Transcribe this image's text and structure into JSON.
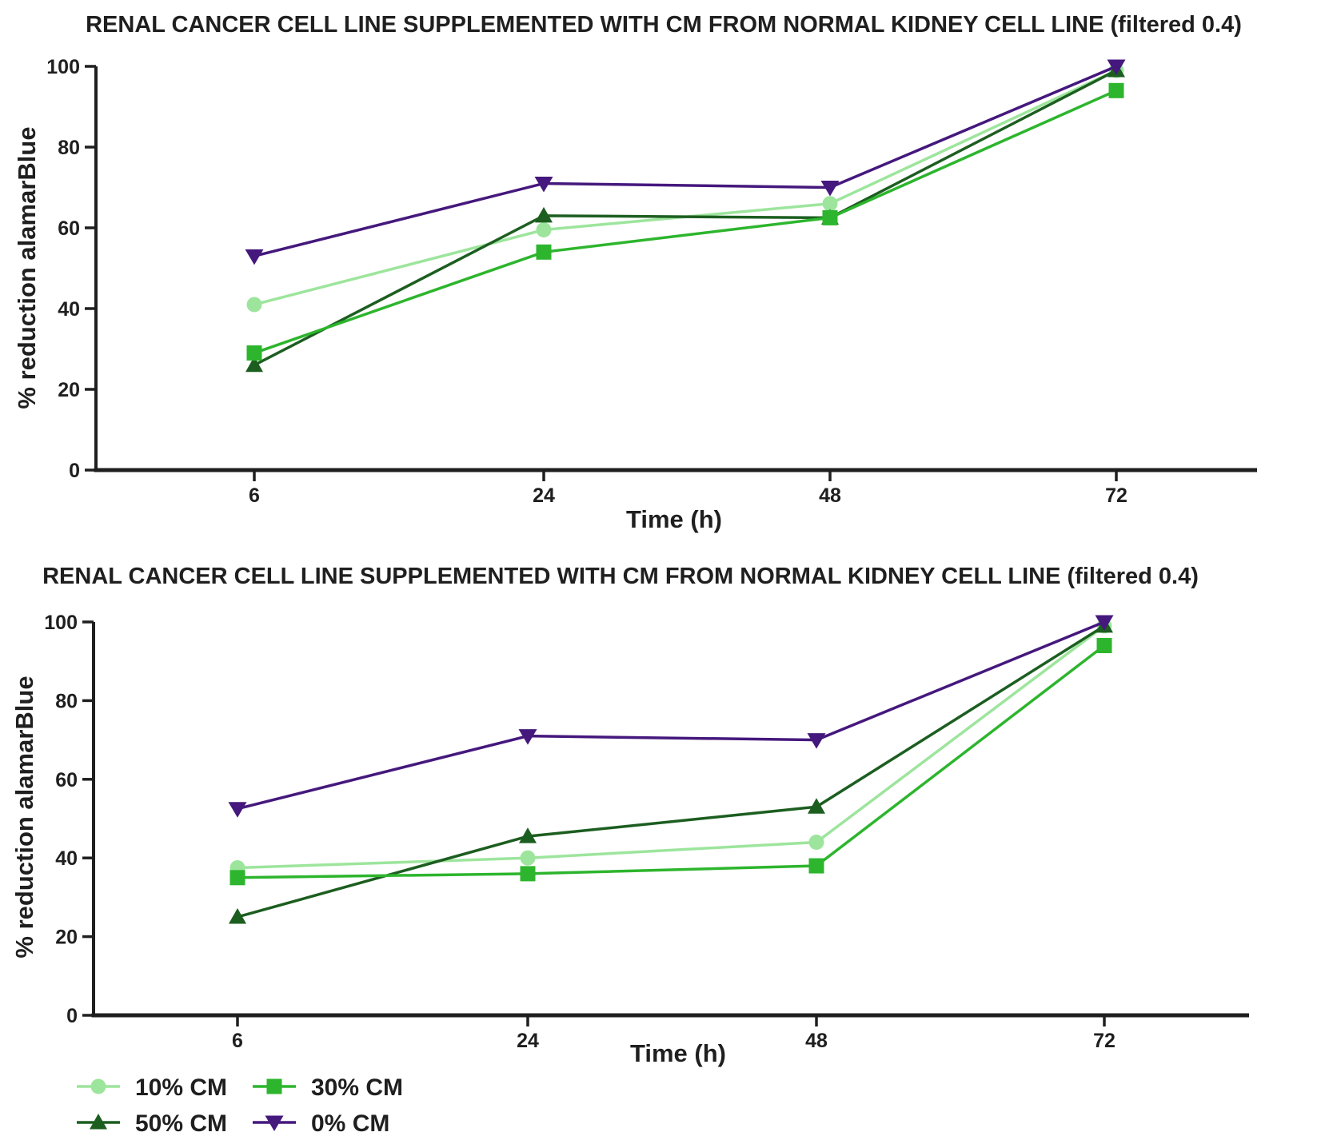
{
  "figure": {
    "background": "#ffffff",
    "text_color": "#1f1f1f"
  },
  "chart_data": [
    {
      "type": "line",
      "title": "RENAL CANCER CELL LINE SUPPLEMENTED WITH CM FROM NORMAL KIDNEY CELL LINE (filtered 0.4)",
      "xlabel": "Time (h)",
      "ylabel": "% reduction alamarBlue",
      "categories": [
        6,
        24,
        48,
        72
      ],
      "yticks": [
        0,
        20,
        40,
        60,
        80,
        100
      ],
      "ylim": [
        0,
        100
      ],
      "grid": false,
      "legend_position": "none",
      "series": [
        {
          "name": "10% CM",
          "marker": "circle",
          "color": "#9de59d",
          "values": [
            41,
            59.5,
            66,
            99
          ]
        },
        {
          "name": "30% CM",
          "marker": "square",
          "color": "#2db52d",
          "values": [
            29,
            54,
            62.5,
            94
          ]
        },
        {
          "name": "50% CM",
          "marker": "triangle-up",
          "color": "#1c5e20",
          "values": [
            26,
            63,
            62.5,
            99
          ]
        },
        {
          "name": "0% CM",
          "marker": "triangle-down",
          "color": "#45187d",
          "values": [
            53,
            71,
            70,
            100
          ]
        }
      ]
    },
    {
      "type": "line",
      "title": "RENAL CANCER CELL LINE SUPPLEMENTED WITH CM FROM NORMAL KIDNEY CELL LINE (filtered 0.4)",
      "xlabel": "Time (h)",
      "ylabel": "% reduction alamarBlue",
      "categories": [
        6,
        24,
        48,
        72
      ],
      "yticks": [
        0,
        20,
        40,
        60,
        80,
        100
      ],
      "ylim": [
        0,
        100
      ],
      "grid": false,
      "legend_position": "bottom-left",
      "series": [
        {
          "name": "10% CM",
          "marker": "circle",
          "color": "#9de59d",
          "values": [
            37.5,
            40,
            44,
            99
          ]
        },
        {
          "name": "30% CM",
          "marker": "square",
          "color": "#2db52d",
          "values": [
            35,
            36,
            38,
            94
          ]
        },
        {
          "name": "50% CM",
          "marker": "triangle-up",
          "color": "#1c5e20",
          "values": [
            25,
            45.5,
            53,
            99
          ]
        },
        {
          "name": "0% CM",
          "marker": "triangle-down",
          "color": "#45187d",
          "values": [
            52.5,
            71,
            70,
            100
          ]
        }
      ]
    }
  ],
  "legend": {
    "items": [
      {
        "label": "10% CM",
        "marker": "circle",
        "color": "#9de59d"
      },
      {
        "label": "30% CM",
        "marker": "square",
        "color": "#2db52d"
      },
      {
        "label": "50% CM",
        "marker": "triangle-up",
        "color": "#1c5e20"
      },
      {
        "label": "0% CM",
        "marker": "triangle-down",
        "color": "#45187d"
      }
    ]
  }
}
